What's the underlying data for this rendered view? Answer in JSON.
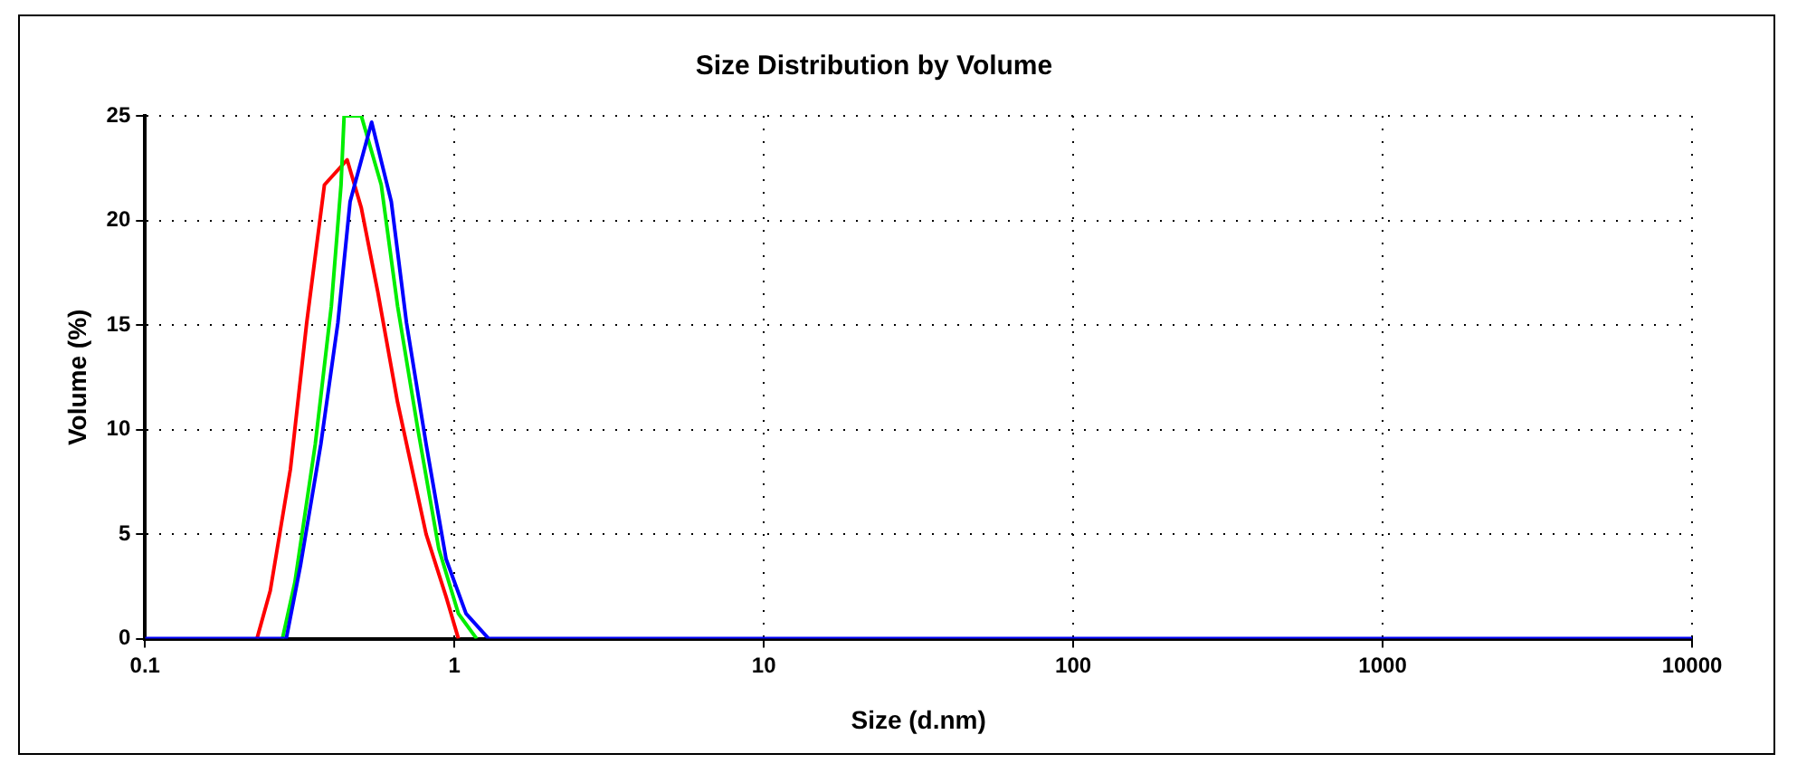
{
  "chart_data": {
    "type": "line",
    "title": "Size Distribution by Volume",
    "xlabel": "Size (d.nm)",
    "ylabel": "Volume (%)",
    "log": "x",
    "xlim": [
      0.1,
      10000
    ],
    "xticks": [
      0.1,
      1,
      10,
      100,
      1000,
      10000
    ],
    "ylim": [
      0,
      25
    ],
    "yticks": [
      0,
      5,
      10,
      15,
      20,
      25
    ],
    "grid": true,
    "line_style": "solid",
    "marker": "none",
    "legend": false,
    "series": [
      {
        "color": "#ff0000",
        "x": [
          0.23,
          0.254,
          0.295,
          0.333,
          0.38,
          0.45,
          0.5,
          0.565,
          0.655,
          0.81,
          0.94,
          1.03
        ],
        "values": [
          0,
          2.3,
          8.1,
          15.1,
          21.7,
          22.9,
          20.6,
          16.6,
          11.3,
          5,
          2,
          0
        ]
      },
      {
        "color": "#00ee00",
        "x": [
          0.278,
          0.305,
          0.355,
          0.4,
          0.43,
          0.44,
          0.5,
          0.58,
          0.655,
          0.76,
          0.89,
          1.03,
          1.18
        ],
        "values": [
          0,
          2.7,
          9.3,
          15.9,
          21.7,
          25,
          25,
          21.7,
          15.9,
          10.1,
          4.3,
          1.2,
          0
        ]
      },
      {
        "color": "#0000ff",
        "x": [
          0.1,
          0.286,
          0.318,
          0.37,
          0.42,
          0.46,
          0.54,
          0.625,
          0.7,
          0.81,
          0.94,
          1.09,
          1.29,
          10000
        ],
        "values": [
          0,
          0,
          3.5,
          9.3,
          15.1,
          20.9,
          24.7,
          20.9,
          15.1,
          9.3,
          3.8,
          1.2,
          0,
          0
        ]
      }
    ]
  }
}
